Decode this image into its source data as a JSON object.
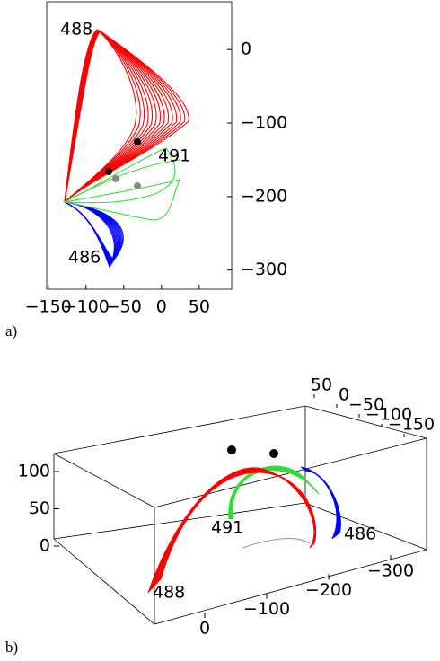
{
  "panel_a": {
    "label": "a)",
    "xlim": [
      -152,
      93
    ],
    "ylim": [
      -326,
      65
    ],
    "xticks": [
      {
        "value": -150,
        "label": "−150"
      },
      {
        "value": -100,
        "label": "−100"
      },
      {
        "value": -50,
        "label": "−50"
      },
      0,
      50
    ],
    "yticks": [
      0,
      {
        "value": -100,
        "label": "−100"
      },
      {
        "value": -200,
        "label": "−200"
      },
      {
        "value": -300,
        "label": "−300"
      }
    ],
    "annotations": [
      "488",
      "491",
      "486"
    ]
  },
  "panel_b": {
    "label": "b)",
    "x_ticks": [
      0,
      {
        "value": -100,
        "label": "−100"
      },
      {
        "value": -200,
        "label": "−200"
      },
      {
        "value": -300,
        "label": "−300"
      }
    ],
    "y_ticks": [
      50,
      0,
      {
        "value": -50,
        "label": "−50"
      },
      {
        "value": -100,
        "label": "−100"
      },
      {
        "value": -150,
        "label": "−150"
      }
    ],
    "z_ticks": [
      0,
      50,
      100
    ],
    "annotations": [
      "488",
      "491",
      "486"
    ]
  }
}
